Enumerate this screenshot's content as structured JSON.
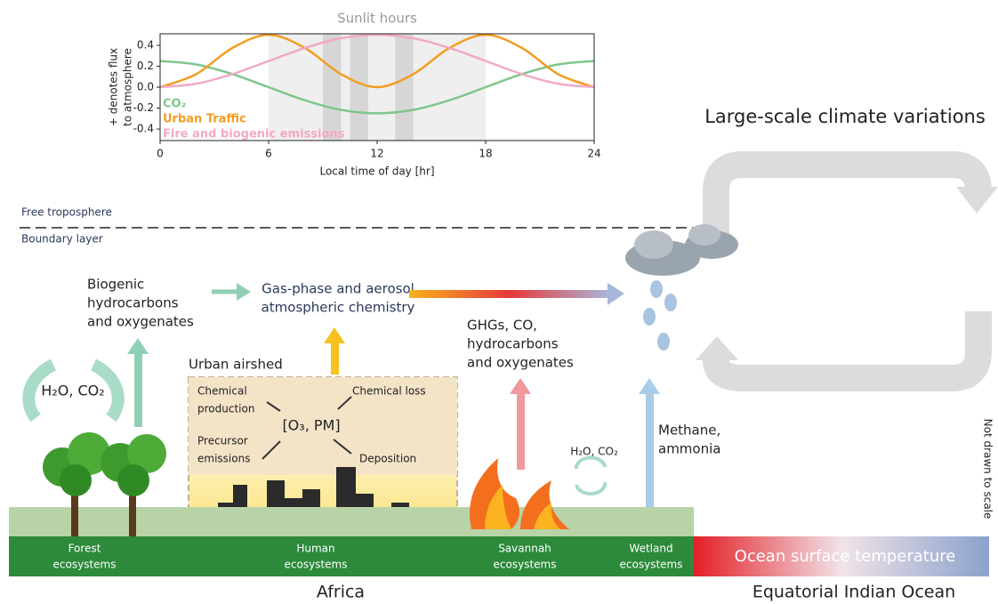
{
  "chart_data": {
    "type": "line",
    "title": "Sunlit hours",
    "xlabel": "Local time of day [hr]",
    "ylabel": [
      "+ denotes flux",
      "to atmosphere"
    ],
    "x": [
      0,
      2,
      4,
      6,
      8,
      10,
      12,
      14,
      16,
      18,
      20,
      22,
      24
    ],
    "series": [
      {
        "name": "CO₂",
        "color": "#7fc68a",
        "values": [
          0.25,
          0.217,
          0.125,
          0,
          -0.125,
          -0.217,
          -0.25,
          -0.217,
          -0.125,
          0,
          0.125,
          0.217,
          0.25
        ]
      },
      {
        "name": "Urban Traffic",
        "color": "#f39c1f",
        "values": [
          0,
          0.125,
          0.375,
          0.5,
          0.375,
          0.125,
          0,
          0.125,
          0.375,
          0.5,
          0.375,
          0.125,
          0
        ]
      },
      {
        "name": "Fire and biogenic emissions",
        "color": "#f2a9c4",
        "values": [
          0,
          0.033,
          0.125,
          0.25,
          0.375,
          0.467,
          0.5,
          0.467,
          0.375,
          0.25,
          0.125,
          0.033,
          0
        ]
      }
    ],
    "sunlit": [
      6,
      18
    ],
    "dark_bands": [
      [
        9,
        10
      ],
      [
        10.5,
        11.5
      ],
      [
        13,
        14
      ]
    ],
    "xlim": [
      0,
      24
    ],
    "ylim": [
      -0.51,
      0.51
    ],
    "xticks": [
      0,
      6,
      12,
      18,
      24
    ],
    "yticks": [
      0.4,
      0.2,
      {
        "value": 0,
        "label": "0.0"
      },
      -0.2,
      -0.4
    ]
  },
  "diagram": {
    "free_troposphere": "Free troposphere",
    "boundary_layer": "Boundary layer",
    "biogenic": [
      "Biogenic",
      "hydrocarbons",
      "and oxygenates"
    ],
    "chemistry": [
      "Gas-phase and aerosol",
      "atmospheric chemistry"
    ],
    "ghgs": [
      "GHGs, CO,",
      "hydrocarbons",
      "and oxygenates"
    ],
    "climate": "Large-scale climate variations",
    "h2o_co2_forest": "H₂O, CO₂",
    "h2o_co2_savannah": "H₂O, CO₂",
    "urban_airshed": "Urban airshed",
    "chemical_production": [
      "Chemical",
      "production"
    ],
    "chemical_loss": "Chemical loss",
    "o3_pm": "[O₃, PM]",
    "precursor": [
      "Precursor",
      "emissions"
    ],
    "deposition": "Deposition",
    "methane": [
      "Methane,",
      "ammonia"
    ],
    "not_to_scale": "Not drawn to scale",
    "forest": [
      "Forest",
      "ecosystems"
    ],
    "human": [
      "Human",
      "ecosystems"
    ],
    "savannah": [
      "Savannah",
      "ecosystems"
    ],
    "wetland": [
      "Wetland",
      "ecosystems"
    ],
    "ocean_sst": "Ocean surface temperature",
    "africa": "Africa",
    "indian_ocean": "Equatorial Indian Ocean"
  }
}
